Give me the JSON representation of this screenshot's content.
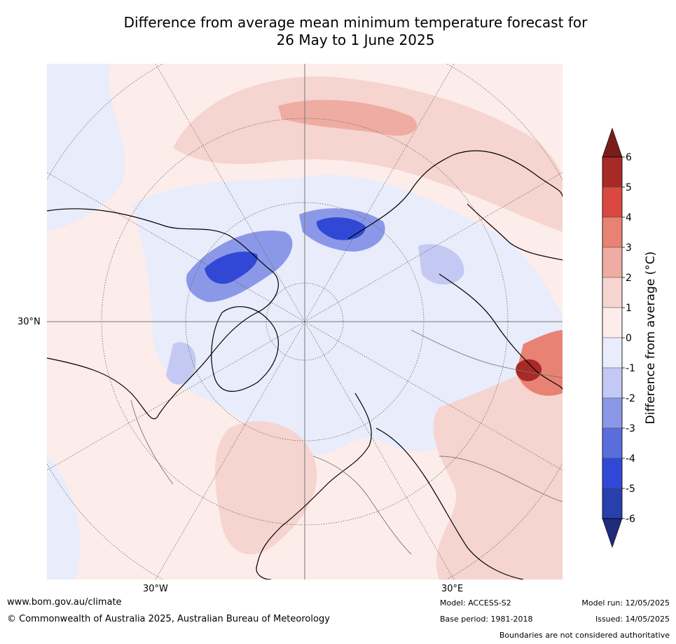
{
  "title_line1": "Difference from average mean minimum temperature forecast for",
  "title_line2": "26 May to 1 June 2025",
  "axis_labels": {
    "lat": "30°N",
    "lon_left": "30°W",
    "lon_right": "30°E"
  },
  "colorbar": {
    "label": "Difference from average (°C)",
    "ticks": [
      "6",
      "5",
      "4",
      "3",
      "2",
      "1",
      "0",
      "-1",
      "-2",
      "-3",
      "-4",
      "-5",
      "-6"
    ],
    "colors": {
      "gt6": "#7a1d1a",
      "5_6": "#a82a26",
      "4_5": "#d9493f",
      "3_4": "#e88274",
      "2_3": "#efaca2",
      "1_2": "#f6d4cf",
      "0_1": "#fcecea",
      "m1_0": "#e8ecfb",
      "m2_m1": "#c3c9f2",
      "m3_m2": "#8b98e8",
      "m4_m3": "#5a6ddd",
      "m5_m4": "#3148d6",
      "m6_m5": "#2a3fae",
      "lt_m6": "#1f2c7c"
    }
  },
  "footer": {
    "website": "www.bom.gov.au/climate",
    "copyright": "© Commonwealth of Australia 2025, Australian Bureau of Meteorology",
    "model": "Model: ACCESS-S2",
    "base_period": "Base period: 1981-2018",
    "model_run": "Model run: 12/05/2025",
    "issued": "Issued: 14/05/2025",
    "disclaimer": "Boundaries are not considered authoritative"
  }
}
